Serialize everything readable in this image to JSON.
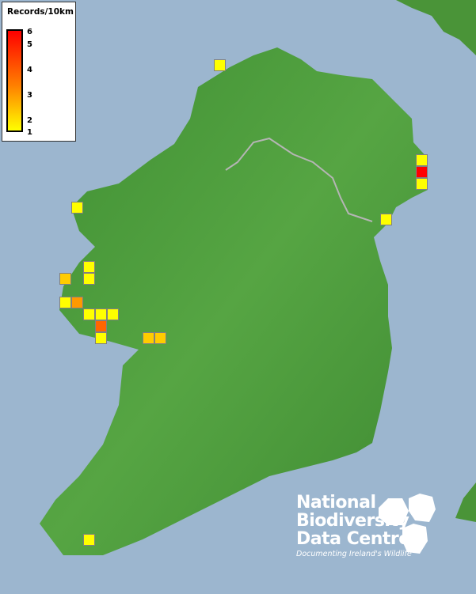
{
  "legend": {
    "title": "Records/10km",
    "ticks": [
      "6",
      "5",
      "4",
      "3",
      "2",
      "1"
    ],
    "scale_min": 1,
    "scale_max": 6,
    "colors": {
      "low": "#ffff00",
      "mid": "#ff8000",
      "high": "#ff0000"
    }
  },
  "records": [
    1,
    1,
    6,
    1,
    1,
    1,
    1,
    1,
    2,
    1,
    3,
    1,
    1,
    1,
    4,
    1,
    2,
    2,
    1
  ],
  "colors": {
    "sea": "#9cb6cf",
    "land": "#4f9a3c",
    "border": "#b0b0b0"
  },
  "logo": {
    "line1": "National",
    "line2": "Biodiversity",
    "line3": "Data Centre",
    "tagline": "Documenting Ireland's Wildlife"
  }
}
